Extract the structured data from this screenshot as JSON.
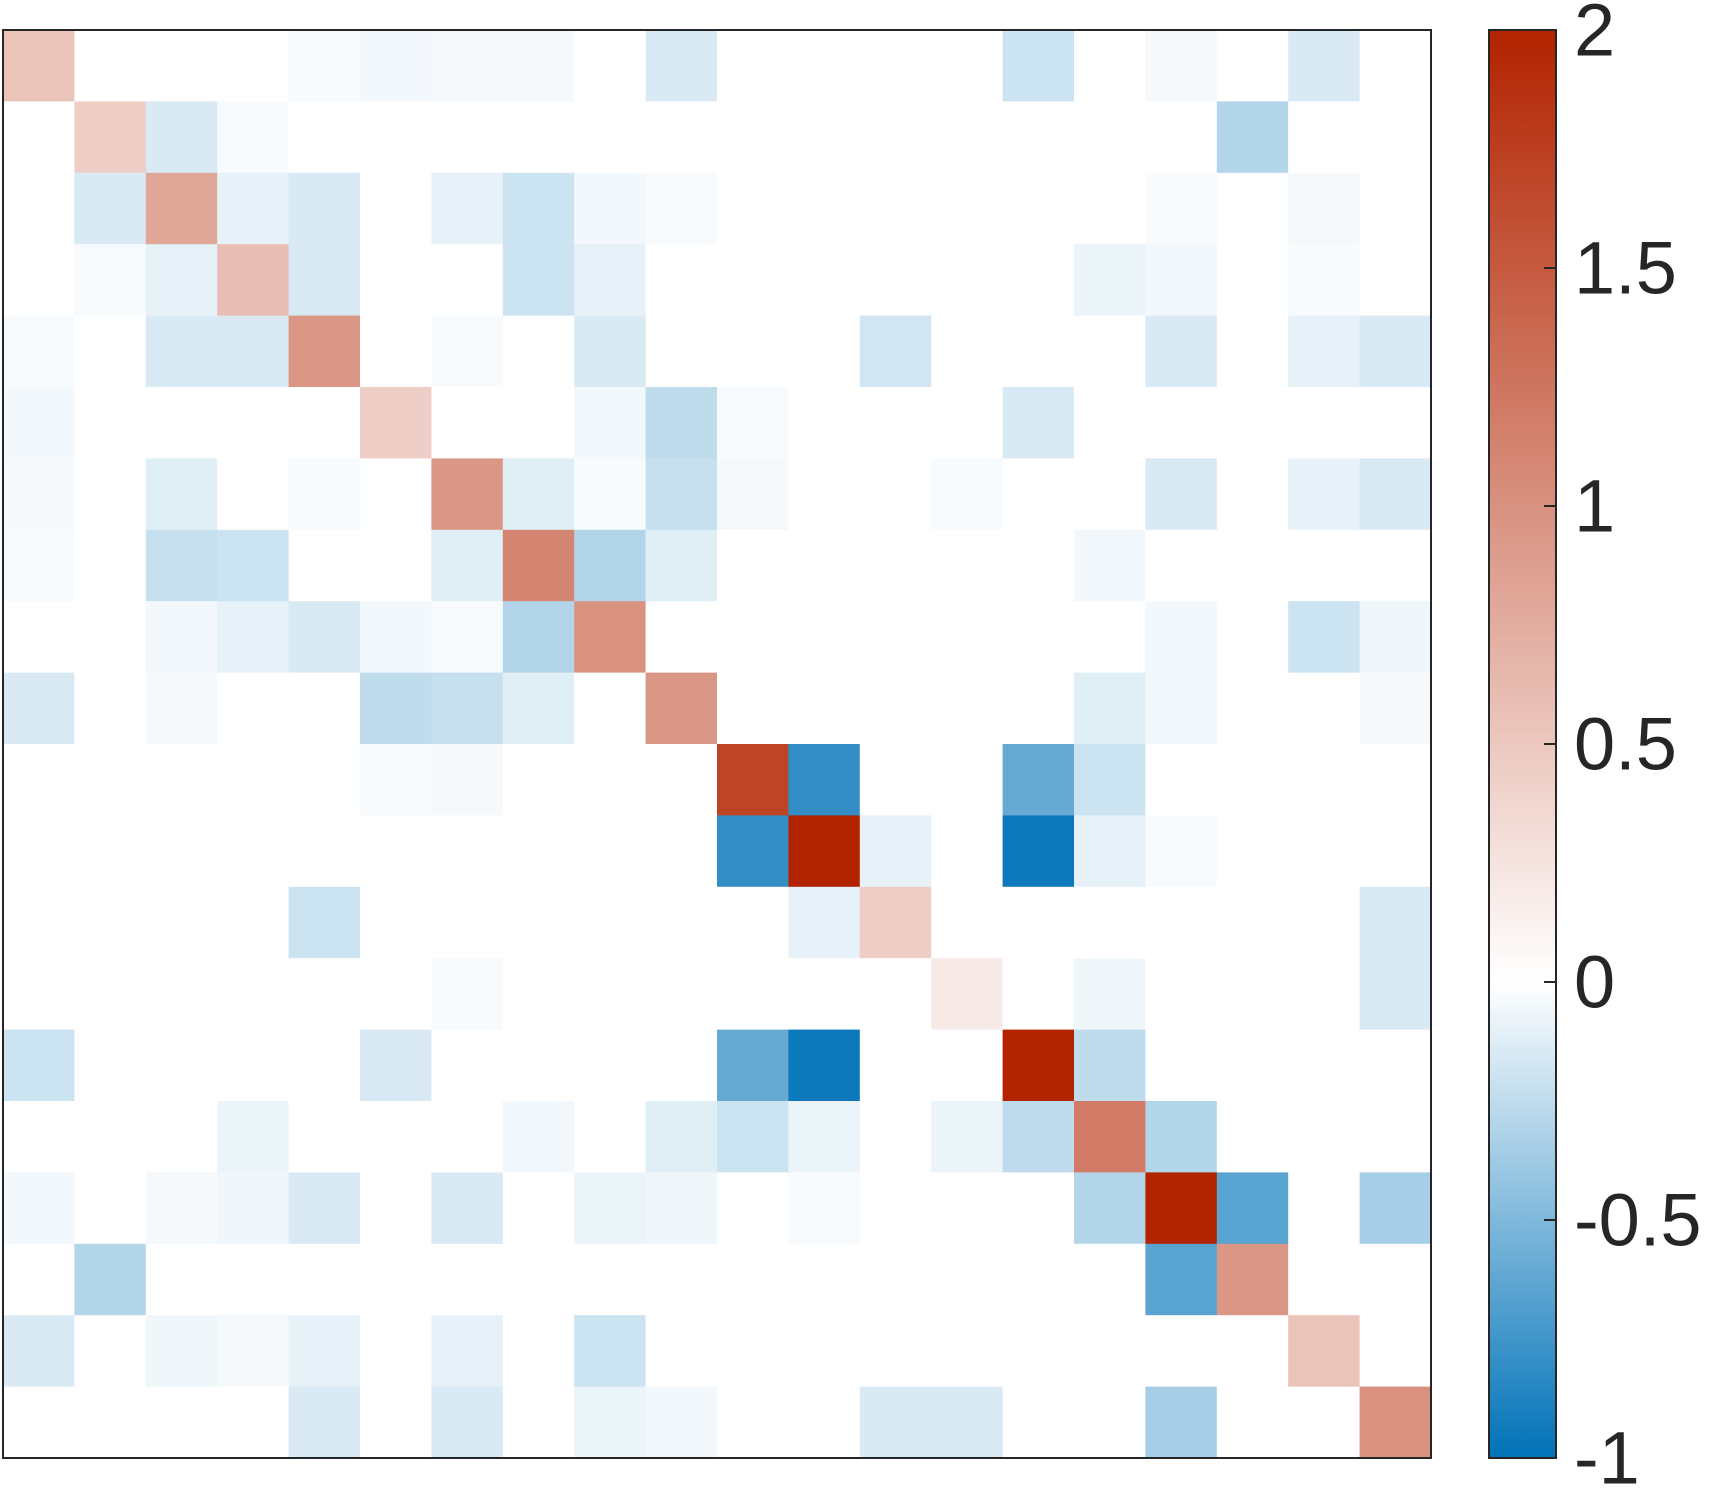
{
  "chart_data": {
    "type": "heatmap",
    "title": "",
    "xlabel": "",
    "ylabel": "",
    "rows": 20,
    "cols": 20,
    "clim": [
      -1,
      2
    ],
    "colormap": {
      "negative_end": "#0072b8",
      "zero": "#ffffff",
      "positive_end": "#b22300"
    },
    "colorbar": {
      "position": "right",
      "ticks": [
        2,
        1.5,
        1,
        0.5,
        0,
        -0.5,
        -1
      ],
      "tick_labels": [
        "2",
        "1.5",
        "1",
        "0.5",
        "0",
        "-0.5",
        "-1"
      ]
    },
    "values": [
      [
        0.55,
        0,
        0,
        0,
        -0.03,
        -0.05,
        -0.04,
        -0.04,
        0,
        -0.15,
        0,
        0,
        0,
        0,
        -0.2,
        0,
        -0.04,
        0,
        -0.15,
        0
      ],
      [
        0,
        0.45,
        -0.15,
        -0.03,
        0,
        0,
        0,
        0,
        0,
        0,
        0,
        0,
        0,
        0,
        0,
        0,
        0,
        -0.3,
        0,
        0
      ],
      [
        0,
        -0.15,
        0.8,
        -0.1,
        -0.15,
        0,
        -0.1,
        -0.2,
        -0.05,
        -0.03,
        0,
        0,
        0,
        0,
        0,
        0,
        -0.03,
        0,
        -0.04,
        0
      ],
      [
        0,
        -0.03,
        -0.1,
        0.6,
        -0.15,
        0,
        0,
        -0.2,
        -0.1,
        0,
        0,
        0,
        0,
        0,
        0,
        -0.08,
        -0.05,
        0,
        -0.03,
        0
      ],
      [
        -0.03,
        0,
        -0.15,
        -0.15,
        0.95,
        0,
        -0.03,
        0,
        -0.15,
        0,
        0,
        0,
        -0.18,
        0,
        0,
        0,
        -0.15,
        0,
        -0.1,
        -0.15
      ],
      [
        -0.05,
        0,
        0,
        0,
        0,
        0.45,
        0,
        0,
        -0.05,
        -0.25,
        -0.03,
        0,
        0,
        0,
        -0.15,
        0,
        0,
        0,
        0,
        0
      ],
      [
        -0.04,
        0,
        -0.12,
        0,
        -0.03,
        0,
        0.95,
        -0.12,
        -0.03,
        -0.22,
        -0.04,
        0,
        0,
        -0.03,
        0,
        0,
        -0.15,
        0,
        -0.1,
        -0.15
      ],
      [
        -0.03,
        0,
        -0.22,
        -0.2,
        0,
        0,
        -0.12,
        1.1,
        -0.3,
        -0.12,
        0,
        0,
        0,
        0,
        0,
        -0.05,
        0,
        0,
        0,
        0
      ],
      [
        0,
        0,
        -0.05,
        -0.1,
        -0.15,
        -0.05,
        -0.03,
        -0.3,
        1.0,
        0,
        0,
        0,
        0,
        0,
        0,
        0,
        -0.05,
        0,
        -0.2,
        -0.06
      ],
      [
        -0.15,
        0,
        -0.04,
        0,
        0,
        -0.25,
        -0.22,
        -0.12,
        0,
        0.95,
        0,
        0,
        0,
        0,
        0,
        -0.12,
        -0.05,
        0,
        0,
        -0.04
      ],
      [
        0,
        0,
        0,
        0,
        0,
        -0.03,
        -0.04,
        0,
        0,
        0,
        1.7,
        -0.8,
        0,
        0,
        -0.6,
        -0.2,
        0,
        0,
        0,
        0
      ],
      [
        0,
        0,
        0,
        0,
        0,
        0,
        0,
        0,
        0,
        0,
        -0.8,
        2.0,
        -0.1,
        0,
        -0.95,
        -0.1,
        -0.03,
        0,
        0,
        0
      ],
      [
        0,
        0,
        0,
        0,
        -0.2,
        0,
        0,
        0,
        0,
        0,
        0,
        -0.1,
        0.45,
        0,
        0,
        0,
        0,
        0,
        0,
        -0.15
      ],
      [
        0,
        0,
        0,
        0,
        0,
        0,
        -0.03,
        0,
        0,
        0,
        0,
        0,
        0,
        0.2,
        0,
        -0.06,
        0,
        0,
        0,
        -0.15
      ],
      [
        -0.2,
        0,
        0,
        0,
        0,
        -0.15,
        0,
        0,
        0,
        0,
        -0.6,
        -0.95,
        0,
        0,
        2.0,
        -0.25,
        0,
        0,
        0,
        0
      ],
      [
        0,
        0,
        0,
        -0.08,
        0,
        0,
        0,
        -0.05,
        0,
        -0.12,
        -0.2,
        -0.08,
        0,
        -0.08,
        -0.25,
        1.2,
        -0.3,
        0,
        0,
        0
      ],
      [
        -0.05,
        0,
        -0.04,
        -0.06,
        -0.15,
        0,
        -0.15,
        0,
        -0.08,
        -0.06,
        0,
        -0.03,
        0,
        0,
        0,
        -0.3,
        2.0,
        -0.65,
        0,
        -0.35
      ],
      [
        0,
        -0.3,
        0,
        0,
        0,
        0,
        0,
        0,
        0,
        0,
        0,
        0,
        0,
        0,
        0,
        0,
        -0.65,
        0.95,
        0,
        0
      ],
      [
        -0.15,
        0,
        -0.06,
        -0.04,
        -0.1,
        0,
        -0.1,
        0,
        -0.2,
        0,
        0,
        0,
        0,
        0,
        0,
        0,
        0,
        0,
        0.55,
        0
      ],
      [
        0,
        0,
        0,
        0,
        -0.15,
        0,
        -0.15,
        0,
        -0.08,
        -0.05,
        0,
        0,
        -0.15,
        -0.15,
        0,
        0,
        -0.35,
        0,
        0,
        1.0
      ]
    ]
  }
}
